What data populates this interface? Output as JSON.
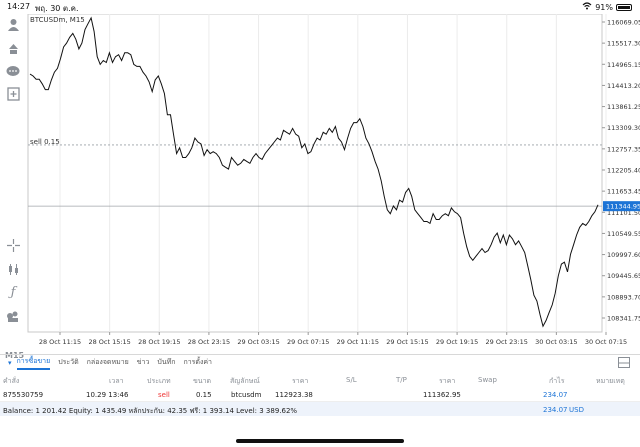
{
  "status": {
    "time": "14:27",
    "date": "พฤ. 30 ต.ค.",
    "battery": "91%"
  },
  "toolbar": {
    "icons": [
      "account-icon",
      "trade-icon",
      "chat-icon",
      "add-icon",
      "crosshair-icon",
      "candles-icon",
      "indicator-icon",
      "objects-icon"
    ],
    "timeframe": "M15"
  },
  "chart": {
    "symbol": "BTCUSDm, M15",
    "sell_label": "sell 0.15",
    "sell_level": 112923.38,
    "current_price": "111344.95",
    "price_labels": [
      "116069.05",
      "115517.30",
      "114965.15",
      "114413.20",
      "113861.25",
      "113309.30",
      "112757.35",
      "112205.40",
      "111653.45",
      "111101.50",
      "110549.55",
      "109997.60",
      "109445.65",
      "108893.70",
      "108341.75"
    ],
    "time_labels": [
      "28 Oct 11:15",
      "28 Oct 15:15",
      "28 Oct 19:15",
      "28 Oct 23:15",
      "29 Oct 03:15",
      "29 Oct 07:15",
      "29 Oct 11:15",
      "29 Oct 15:15",
      "29 Oct 19:15",
      "29 Oct 23:15",
      "30 Oct 03:15",
      "30 Oct 07:15"
    ],
    "colors": {
      "line": "#111111",
      "grid": "#ececec",
      "current_bg": "#1d74d6",
      "sell_line": "#9aa0a6"
    }
  },
  "chart_data": {
    "type": "line",
    "title": "BTCUSDm, M15",
    "ylim": [
      108100,
      116300
    ],
    "x_range": [
      "28 Oct 10:00",
      "30 Oct 07:30"
    ],
    "values": [
      114750,
      114700,
      114620,
      114620,
      114500,
      114350,
      114350,
      114600,
      114800,
      114900,
      115150,
      115450,
      115550,
      115700,
      115800,
      115650,
      115400,
      115550,
      115900,
      116050,
      116200,
      115850,
      115200,
      115000,
      115100,
      115050,
      115300,
      115050,
      115200,
      115250,
      115100,
      115300,
      115300,
      115250,
      115000,
      114950,
      114950,
      114800,
      114700,
      114550,
      114300,
      114600,
      114700,
      114500,
      114250,
      113700,
      113700,
      113200,
      112700,
      112850,
      112600,
      112600,
      112700,
      112850,
      113100,
      113000,
      112950,
      112650,
      112800,
      112700,
      112750,
      112700,
      112600,
      112400,
      112350,
      112300,
      112600,
      112500,
      112400,
      112450,
      112550,
      112500,
      112450,
      112600,
      112700,
      112600,
      112550,
      112700,
      112800,
      112900,
      113000,
      113100,
      113050,
      113300,
      113250,
      113200,
      113350,
      113200,
      113150,
      112850,
      112950,
      112700,
      112750,
      112950,
      113100,
      113050,
      113250,
      113200,
      113350,
      113250,
      113400,
      113100,
      113000,
      112800,
      113100,
      113350,
      113500,
      113500,
      113600,
      113400,
      113100,
      112950,
      112750,
      112500,
      112300,
      112000,
      111600,
      111250,
      111150,
      111350,
      111250,
      111500,
      111450,
      111700,
      111800,
      111600,
      111250,
      111150,
      111050,
      110950,
      110950,
      110900,
      111150,
      111000,
      111000,
      111100,
      111150,
      111100,
      111300,
      111200,
      111150,
      111050,
      110650,
      110300,
      110050,
      109950,
      110050,
      110150,
      110250,
      110150,
      110200,
      110350,
      110550,
      110650,
      110400,
      110600,
      110350,
      110600,
      110500,
      110350,
      110450,
      110300,
      110150,
      109800,
      109450,
      109050,
      108900,
      108550,
      108250,
      108400,
      108600,
      108800,
      109100,
      109550,
      109850,
      109900,
      109650,
      110100,
      110350,
      110600,
      110800,
      110900,
      110850,
      110950,
      111100,
      111200,
      111380
    ]
  },
  "tabs": {
    "items": [
      "การซื้อขาย",
      "ประวัติ",
      "กล่องจดหมาย",
      "ข่าว",
      "บันทึก",
      "การตั้งค่า"
    ],
    "active": 0
  },
  "table": {
    "headers": [
      "คำสั่ง",
      "เวลา",
      "ประเภท",
      "ขนาด",
      "สัญลักษณ์",
      "ราคา",
      "S/L",
      "T/P",
      "ราคา",
      "Swap",
      "กำไร",
      "หมายเหตุ"
    ],
    "row": [
      "875530759",
      "10.29 13:46",
      "sell",
      "0.15",
      "btcusdm",
      "112923.38",
      "",
      "",
      "111362.95",
      "",
      "234.07",
      ""
    ]
  },
  "balance": {
    "text": "Balance: 1 201.42 Equity: 1 435.49 หลักประกัน: 42.35 ฟรี: 1 393.14 Level: 3 389.62%",
    "total": "234.07",
    "currency": "USD"
  }
}
